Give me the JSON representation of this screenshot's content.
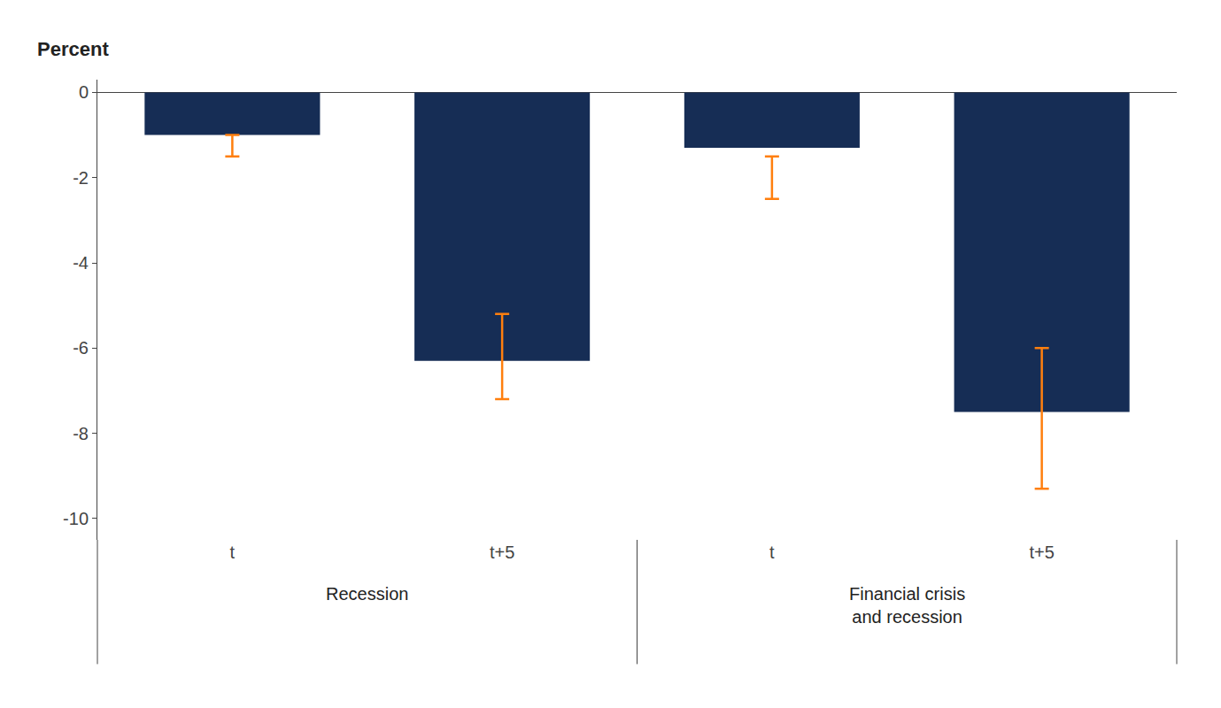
{
  "chart_data": {
    "type": "bar",
    "ylabel": "Percent",
    "categories": [
      "t",
      "t+5",
      "t",
      "t+5"
    ],
    "groups": [
      "Recession",
      "Recession",
      "Financial crisis\nand recession",
      "Financial crisis\nand recession"
    ],
    "values": [
      -1.0,
      -6.3,
      -1.3,
      -7.5
    ],
    "err_low": [
      -1.5,
      -7.2,
      -2.5,
      -9.3
    ],
    "err_high": [
      -1.0,
      -5.2,
      -1.5,
      -6.0
    ],
    "color": "#162d55",
    "ylim": [
      -10.5,
      0.3
    ],
    "yticks": [
      0,
      -2,
      -4,
      -6,
      -8,
      -10
    ],
    "grid": false
  }
}
